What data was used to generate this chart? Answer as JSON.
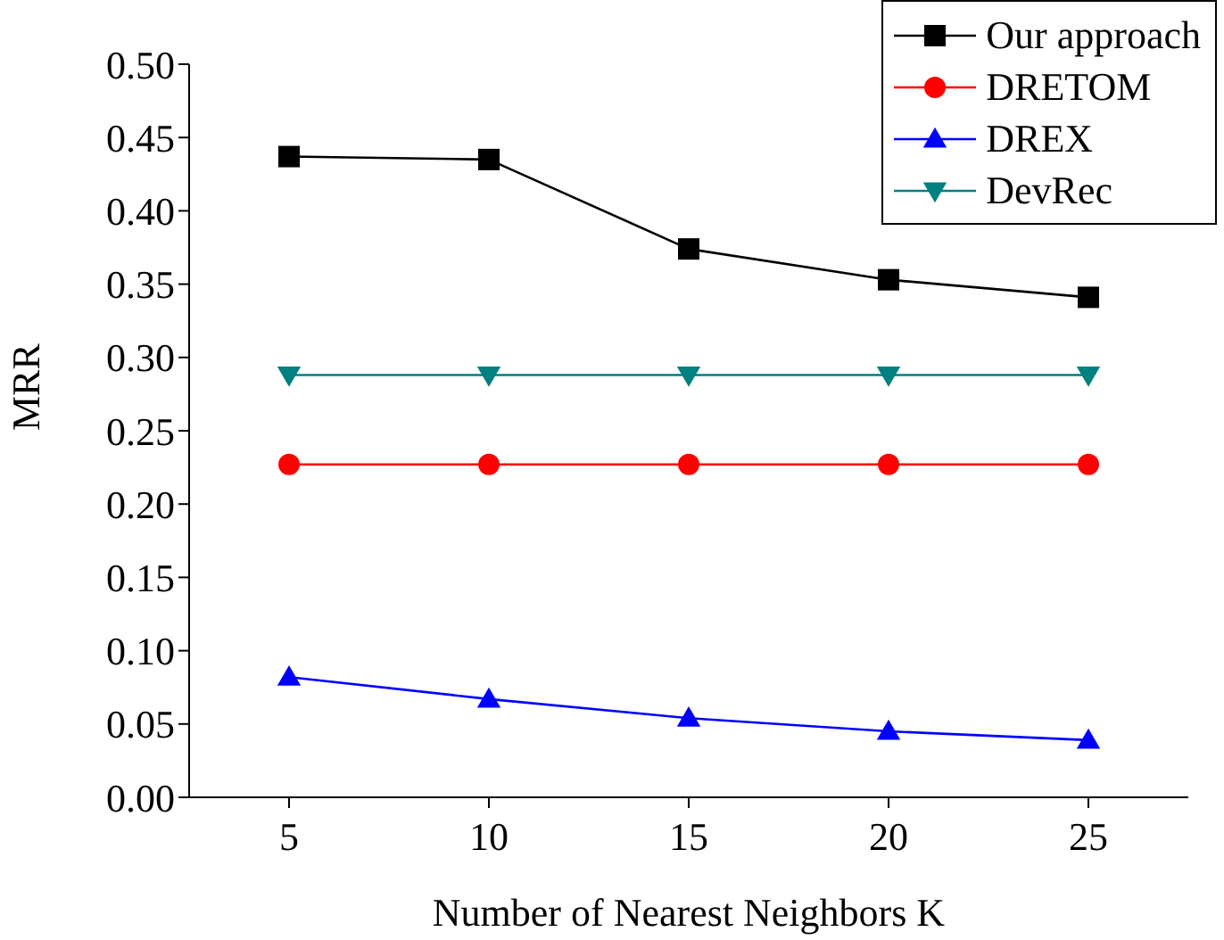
{
  "chart_data": {
    "type": "line",
    "xlabel": "Number of Nearest Neighbors K",
    "ylabel": "MRR",
    "x": [
      5,
      10,
      15,
      20,
      25
    ],
    "xlim": [
      2.5,
      27.5
    ],
    "xticks": [
      5,
      10,
      15,
      20,
      25
    ],
    "ylim": [
      0,
      0.5
    ],
    "yticks": [
      {
        "value": 0,
        "label": "0.00"
      },
      {
        "value": 0.05,
        "label": "0.05"
      },
      {
        "value": 0.1,
        "label": "0.10"
      },
      {
        "value": 0.15,
        "label": "0.15"
      },
      {
        "value": 0.2,
        "label": "0.20"
      },
      {
        "value": 0.25,
        "label": "0.25"
      },
      {
        "value": 0.3,
        "label": "0.30"
      },
      {
        "value": 0.35,
        "label": "0.35"
      },
      {
        "value": 0.4,
        "label": "0.40"
      },
      {
        "value": 0.45,
        "label": "0.45"
      },
      {
        "value": 0.5,
        "label": "0.50"
      }
    ],
    "grid": false,
    "legend": "top right",
    "series": [
      {
        "name": "Our approach",
        "color": "#000000",
        "marker": "square",
        "values": [
          0.437,
          0.435,
          0.374,
          0.353,
          0.341
        ]
      },
      {
        "name": "DRETOM",
        "color": "#ff0000",
        "marker": "circle",
        "values": [
          0.227,
          0.227,
          0.227,
          0.227,
          0.227
        ]
      },
      {
        "name": "DREX",
        "color": "#0000ff",
        "marker": "triangle",
        "values": [
          0.082,
          0.067,
          0.054,
          0.045,
          0.039
        ]
      },
      {
        "name": "DevRec",
        "color": "#008080",
        "marker": "triangle-down",
        "values": [
          0.288,
          0.288,
          0.288,
          0.288,
          0.288
        ]
      }
    ]
  }
}
